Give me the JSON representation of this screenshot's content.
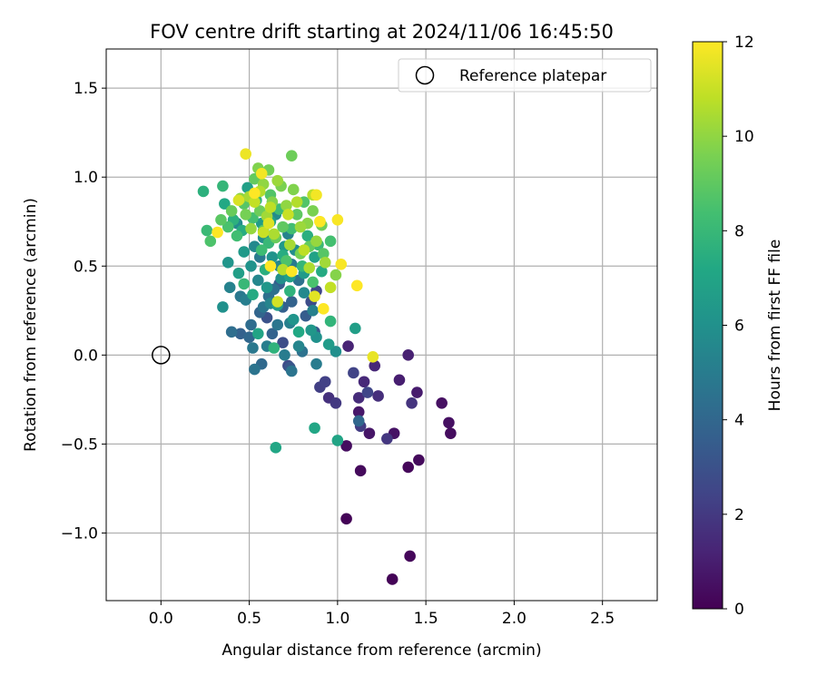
{
  "chart_data": {
    "type": "scatter",
    "title": "FOV centre drift starting at 2024/11/06 16:45:50",
    "xlabel": "Angular distance from reference (arcmin)",
    "ylabel": "Rotation from reference (arcmin)",
    "xlim": [
      -0.31,
      2.81
    ],
    "ylim": [
      -1.38,
      1.72
    ],
    "xticks": [
      0.0,
      0.5,
      1.0,
      1.5,
      2.0,
      2.5
    ],
    "xtick_labels": [
      "0.0",
      "0.5",
      "1.0",
      "1.5",
      "2.0",
      "2.5"
    ],
    "yticks": [
      -1.0,
      -0.5,
      0.0,
      0.5,
      1.0,
      1.5
    ],
    "ytick_labels": [
      "−1.0",
      "−0.5",
      "0.0",
      "0.5",
      "1.0",
      "1.5"
    ],
    "grid": true,
    "legend": {
      "position": "top-right",
      "entries": [
        {
          "label": "Reference platepar",
          "marker": "open-circle",
          "x": 0.0,
          "y": 0.0
        }
      ]
    },
    "colorbar": {
      "label": "Hours from first FF file",
      "colormap": "viridis",
      "range": [
        0,
        12
      ],
      "ticks": [
        0,
        2,
        4,
        6,
        8,
        10,
        12
      ],
      "tick_labels": [
        "0",
        "2",
        "4",
        "6",
        "8",
        "10",
        "12"
      ]
    },
    "series": [
      {
        "values": [
          {
            "x": 1.05,
            "y": -0.92,
            "h": 0.1
          },
          {
            "x": 1.31,
            "y": -1.26,
            "h": 0.1
          },
          {
            "x": 1.41,
            "y": -1.13,
            "h": 0.2
          },
          {
            "x": 1.4,
            "y": -0.63,
            "h": 0.2
          },
          {
            "x": 1.46,
            "y": -0.59,
            "h": 0.3
          },
          {
            "x": 1.13,
            "y": -0.65,
            "h": 0.3
          },
          {
            "x": 1.05,
            "y": -0.51,
            "h": 0.4
          },
          {
            "x": 1.64,
            "y": -0.44,
            "h": 0.4
          },
          {
            "x": 1.63,
            "y": -0.38,
            "h": 0.5
          },
          {
            "x": 1.59,
            "y": -0.27,
            "h": 0.5
          },
          {
            "x": 1.32,
            "y": -0.44,
            "h": 0.6
          },
          {
            "x": 1.18,
            "y": -0.44,
            "h": 0.7
          },
          {
            "x": 1.12,
            "y": -0.32,
            "h": 0.8
          },
          {
            "x": 1.45,
            "y": -0.21,
            "h": 0.9
          },
          {
            "x": 1.35,
            "y": -0.14,
            "h": 1.0
          },
          {
            "x": 1.4,
            "y": 0.0,
            "h": 1.1
          },
          {
            "x": 1.06,
            "y": 0.05,
            "h": 1.2
          },
          {
            "x": 1.21,
            "y": -0.06,
            "h": 1.3
          },
          {
            "x": 1.15,
            "y": -0.15,
            "h": 1.4
          },
          {
            "x": 1.12,
            "y": -0.24,
            "h": 1.5
          },
          {
            "x": 1.23,
            "y": -0.23,
            "h": 1.6
          },
          {
            "x": 0.95,
            "y": -0.24,
            "h": 1.7
          },
          {
            "x": 1.42,
            "y": -0.27,
            "h": 1.8
          },
          {
            "x": 1.28,
            "y": -0.47,
            "h": 1.9
          },
          {
            "x": 0.99,
            "y": -0.27,
            "h": 2.0
          },
          {
            "x": 1.13,
            "y": -0.4,
            "h": 2.1
          },
          {
            "x": 0.9,
            "y": -0.18,
            "h": 2.2
          },
          {
            "x": 0.93,
            "y": -0.15,
            "h": 2.3
          },
          {
            "x": 1.09,
            "y": -0.1,
            "h": 2.4
          },
          {
            "x": 1.17,
            "y": -0.21,
            "h": 2.5
          },
          {
            "x": 0.88,
            "y": 0.36,
            "h": 2.5
          },
          {
            "x": 0.72,
            "y": -0.06,
            "h": 2.7
          },
          {
            "x": 0.69,
            "y": 0.07,
            "h": 2.8
          },
          {
            "x": 0.85,
            "y": 0.3,
            "h": 2.8
          },
          {
            "x": 0.6,
            "y": 0.21,
            "h": 3.0
          },
          {
            "x": 0.73,
            "y": -0.07,
            "h": 3.2
          },
          {
            "x": 0.87,
            "y": 0.13,
            "h": 3.3
          },
          {
            "x": 0.82,
            "y": 0.22,
            "h": 3.5
          },
          {
            "x": 0.67,
            "y": 0.4,
            "h": 3.6
          },
          {
            "x": 0.45,
            "y": 0.12,
            "h": 3.7
          },
          {
            "x": 0.69,
            "y": 0.27,
            "h": 3.7
          },
          {
            "x": 0.63,
            "y": 0.12,
            "h": 3.8
          },
          {
            "x": 0.74,
            "y": 0.3,
            "h": 3.8
          },
          {
            "x": 0.56,
            "y": 0.24,
            "h": 3.9
          },
          {
            "x": 0.5,
            "y": 0.1,
            "h": 4.0
          },
          {
            "x": 1.12,
            "y": -0.37,
            "h": 4.0
          },
          {
            "x": 0.57,
            "y": -0.05,
            "h": 4.1
          },
          {
            "x": 0.51,
            "y": 0.17,
            "h": 4.2
          },
          {
            "x": 0.4,
            "y": 0.13,
            "h": 4.3
          },
          {
            "x": 0.61,
            "y": 0.33,
            "h": 4.4
          },
          {
            "x": 0.64,
            "y": 0.37,
            "h": 4.4
          },
          {
            "x": 0.78,
            "y": 0.42,
            "h": 4.5
          },
          {
            "x": 0.8,
            "y": 0.02,
            "h": 4.5
          },
          {
            "x": 0.53,
            "y": -0.08,
            "h": 4.6
          },
          {
            "x": 0.74,
            "y": -0.09,
            "h": 4.6
          },
          {
            "x": 0.58,
            "y": 0.27,
            "h": 4.7
          },
          {
            "x": 0.66,
            "y": 0.17,
            "h": 4.7
          },
          {
            "x": 0.52,
            "y": 0.04,
            "h": 4.8
          },
          {
            "x": 0.45,
            "y": 0.33,
            "h": 4.8
          },
          {
            "x": 0.56,
            "y": 0.55,
            "h": 4.9
          },
          {
            "x": 0.74,
            "y": 0.51,
            "h": 4.9
          },
          {
            "x": 0.7,
            "y": 0.0,
            "h": 5.0
          },
          {
            "x": 0.88,
            "y": -0.05,
            "h": 5.0
          },
          {
            "x": 0.6,
            "y": 0.05,
            "h": 5.1
          },
          {
            "x": 0.48,
            "y": 0.31,
            "h": 5.1
          },
          {
            "x": 0.73,
            "y": 0.18,
            "h": 5.2
          },
          {
            "x": 0.86,
            "y": 0.25,
            "h": 5.2
          },
          {
            "x": 0.39,
            "y": 0.38,
            "h": 5.3
          },
          {
            "x": 0.72,
            "y": 0.68,
            "h": 5.3
          },
          {
            "x": 0.78,
            "y": 0.05,
            "h": 5.4
          },
          {
            "x": 0.62,
            "y": 0.29,
            "h": 5.4
          },
          {
            "x": 0.55,
            "y": 0.42,
            "h": 5.5
          },
          {
            "x": 0.67,
            "y": 0.5,
            "h": 5.5
          },
          {
            "x": 0.53,
            "y": 0.61,
            "h": 5.6
          },
          {
            "x": 0.81,
            "y": 0.35,
            "h": 5.6
          },
          {
            "x": 0.65,
            "y": 0.79,
            "h": 5.7
          },
          {
            "x": 0.43,
            "y": 0.74,
            "h": 5.7
          },
          {
            "x": 0.76,
            "y": 0.59,
            "h": 5.8
          },
          {
            "x": 0.58,
            "y": 0.66,
            "h": 5.8
          },
          {
            "x": 0.68,
            "y": 0.43,
            "h": 5.9
          },
          {
            "x": 0.99,
            "y": 0.02,
            "h": 5.9
          },
          {
            "x": 0.35,
            "y": 0.27,
            "h": 6.0
          },
          {
            "x": 0.88,
            "y": 0.1,
            "h": 6.0
          },
          {
            "x": 0.51,
            "y": 0.5,
            "h": 6.1
          },
          {
            "x": 0.63,
            "y": 0.55,
            "h": 6.1
          },
          {
            "x": 0.75,
            "y": 0.2,
            "h": 6.2
          },
          {
            "x": 0.38,
            "y": 0.52,
            "h": 6.2
          },
          {
            "x": 0.85,
            "y": 0.14,
            "h": 6.3
          },
          {
            "x": 0.6,
            "y": 0.38,
            "h": 6.3
          },
          {
            "x": 0.7,
            "y": 0.61,
            "h": 6.4
          },
          {
            "x": 0.47,
            "y": 0.58,
            "h": 6.4
          },
          {
            "x": 0.95,
            "y": 0.06,
            "h": 6.5
          },
          {
            "x": 0.81,
            "y": 0.46,
            "h": 6.5
          },
          {
            "x": 0.57,
            "y": 0.74,
            "h": 6.6
          },
          {
            "x": 0.66,
            "y": 0.28,
            "h": 6.6
          },
          {
            "x": 0.44,
            "y": 0.46,
            "h": 6.7
          },
          {
            "x": 1.1,
            "y": 0.15,
            "h": 6.7
          },
          {
            "x": 0.73,
            "y": 0.44,
            "h": 6.8
          },
          {
            "x": 0.49,
            "y": 0.94,
            "h": 6.8
          },
          {
            "x": 0.62,
            "y": 0.75,
            "h": 6.9
          },
          {
            "x": 0.87,
            "y": 0.55,
            "h": 6.9
          },
          {
            "x": 0.55,
            "y": 0.12,
            "h": 7.0
          },
          {
            "x": 1.0,
            "y": -0.48,
            "h": 7.0
          },
          {
            "x": 0.65,
            "y": -0.52,
            "h": 7.1
          },
          {
            "x": 0.87,
            "y": -0.41,
            "h": 7.1
          },
          {
            "x": 0.36,
            "y": 0.85,
            "h": 7.2
          },
          {
            "x": 0.78,
            "y": 0.13,
            "h": 7.2
          },
          {
            "x": 0.52,
            "y": 0.34,
            "h": 7.3
          },
          {
            "x": 0.91,
            "y": 0.47,
            "h": 7.3
          },
          {
            "x": 0.69,
            "y": 0.56,
            "h": 7.4
          },
          {
            "x": 0.46,
            "y": 0.7,
            "h": 7.4
          },
          {
            "x": 0.83,
            "y": 0.67,
            "h": 7.5
          },
          {
            "x": 0.59,
            "y": 0.48,
            "h": 7.5
          },
          {
            "x": 0.24,
            "y": 0.92,
            "h": 7.6
          },
          {
            "x": 0.41,
            "y": 0.76,
            "h": 7.6
          },
          {
            "x": 0.73,
            "y": 0.36,
            "h": 7.7
          },
          {
            "x": 0.64,
            "y": 0.04,
            "h": 7.7
          },
          {
            "x": 0.96,
            "y": 0.19,
            "h": 7.8
          },
          {
            "x": 0.54,
            "y": 0.87,
            "h": 7.8
          },
          {
            "x": 0.35,
            "y": 0.95,
            "h": 7.9
          },
          {
            "x": 0.8,
            "y": 0.5,
            "h": 7.9
          },
          {
            "x": 0.61,
            "y": 0.63,
            "h": 8.0
          },
          {
            "x": 0.47,
            "y": 0.4,
            "h": 8.0
          },
          {
            "x": 0.26,
            "y": 0.7,
            "h": 8.1
          },
          {
            "x": 0.89,
            "y": 0.62,
            "h": 8.1
          },
          {
            "x": 0.67,
            "y": 0.82,
            "h": 8.2
          },
          {
            "x": 0.57,
            "y": 0.59,
            "h": 8.2
          },
          {
            "x": 0.74,
            "y": 0.71,
            "h": 8.3
          },
          {
            "x": 0.43,
            "y": 0.67,
            "h": 8.3
          },
          {
            "x": 0.96,
            "y": 0.64,
            "h": 8.4
          },
          {
            "x": 0.52,
            "y": 0.77,
            "h": 8.4
          },
          {
            "x": 0.38,
            "y": 0.72,
            "h": 8.5
          },
          {
            "x": 0.86,
            "y": 0.41,
            "h": 8.5
          },
          {
            "x": 0.28,
            "y": 0.64,
            "h": 8.6
          },
          {
            "x": 0.71,
            "y": 0.53,
            "h": 8.6
          },
          {
            "x": 0.62,
            "y": 0.9,
            "h": 8.7
          },
          {
            "x": 0.81,
            "y": 0.86,
            "h": 8.7
          },
          {
            "x": 0.47,
            "y": 0.85,
            "h": 8.8
          },
          {
            "x": 0.92,
            "y": 0.57,
            "h": 8.8
          },
          {
            "x": 0.34,
            "y": 0.76,
            "h": 8.9
          },
          {
            "x": 0.58,
            "y": 0.7,
            "h": 8.9
          },
          {
            "x": 0.69,
            "y": 0.72,
            "h": 9.0
          },
          {
            "x": 0.77,
            "y": 0.79,
            "h": 9.0
          },
          {
            "x": 0.53,
            "y": 0.99,
            "h": 9.1
          },
          {
            "x": 0.84,
            "y": 0.61,
            "h": 9.1
          },
          {
            "x": 0.65,
            "y": 0.66,
            "h": 9.2
          },
          {
            "x": 0.4,
            "y": 0.81,
            "h": 9.2
          },
          {
            "x": 0.74,
            "y": 1.12,
            "h": 9.3
          },
          {
            "x": 0.56,
            "y": 0.81,
            "h": 9.3
          },
          {
            "x": 0.91,
            "y": 0.73,
            "h": 9.4
          },
          {
            "x": 0.61,
            "y": 1.04,
            "h": 9.4
          },
          {
            "x": 0.79,
            "y": 0.57,
            "h": 9.5
          },
          {
            "x": 0.48,
            "y": 0.79,
            "h": 9.5
          },
          {
            "x": 0.68,
            "y": 0.95,
            "h": 9.6
          },
          {
            "x": 0.86,
            "y": 0.81,
            "h": 9.6
          },
          {
            "x": 0.55,
            "y": 1.05,
            "h": 9.7
          },
          {
            "x": 0.75,
            "y": 0.93,
            "h": 9.7
          },
          {
            "x": 0.63,
            "y": 0.86,
            "h": 9.8
          },
          {
            "x": 0.99,
            "y": 0.45,
            "h": 9.8
          },
          {
            "x": 0.45,
            "y": 0.88,
            "h": 9.9
          },
          {
            "x": 0.83,
            "y": 0.74,
            "h": 9.9
          },
          {
            "x": 0.58,
            "y": 0.96,
            "h": 10.0
          },
          {
            "x": 0.71,
            "y": 0.84,
            "h": 10.0
          },
          {
            "x": 0.88,
            "y": 0.64,
            "h": 10.1
          },
          {
            "x": 0.51,
            "y": 0.71,
            "h": 10.1
          },
          {
            "x": 0.66,
            "y": 0.98,
            "h": 10.2
          },
          {
            "x": 0.79,
            "y": 0.72,
            "h": 10.2
          },
          {
            "x": 0.93,
            "y": 0.52,
            "h": 10.3
          },
          {
            "x": 0.6,
            "y": 0.78,
            "h": 10.3
          },
          {
            "x": 0.73,
            "y": 0.62,
            "h": 10.4
          },
          {
            "x": 0.5,
            "y": 0.89,
            "h": 10.4
          },
          {
            "x": 0.84,
            "y": 0.49,
            "h": 10.5
          },
          {
            "x": 0.64,
            "y": 0.68,
            "h": 10.5
          },
          {
            "x": 0.77,
            "y": 0.86,
            "h": 10.6
          },
          {
            "x": 0.56,
            "y": 0.92,
            "h": 10.6
          },
          {
            "x": 0.69,
            "y": 0.48,
            "h": 10.7
          },
          {
            "x": 0.86,
            "y": 0.9,
            "h": 10.7
          },
          {
            "x": 0.62,
            "y": 0.83,
            "h": 10.8
          },
          {
            "x": 0.81,
            "y": 0.59,
            "h": 10.8
          },
          {
            "x": 0.53,
            "y": 0.86,
            "h": 10.9
          },
          {
            "x": 0.96,
            "y": 0.38,
            "h": 10.9
          },
          {
            "x": 0.72,
            "y": 0.79,
            "h": 11.0
          },
          {
            "x": 0.58,
            "y": 0.69,
            "h": 11.0
          },
          {
            "x": 0.9,
            "y": 0.75,
            "h": 11.1
          },
          {
            "x": 0.66,
            "y": 0.3,
            "h": 11.2
          },
          {
            "x": 0.44,
            "y": 0.87,
            "h": 11.3
          },
          {
            "x": 0.61,
            "y": 0.74,
            "h": 11.4
          },
          {
            "x": 0.87,
            "y": 0.33,
            "h": 11.5
          },
          {
            "x": 1.2,
            "y": -0.01,
            "h": 11.6
          },
          {
            "x": 0.48,
            "y": 1.13,
            "h": 11.7
          },
          {
            "x": 0.57,
            "y": 1.02,
            "h": 11.8
          },
          {
            "x": 0.88,
            "y": 0.9,
            "h": 11.8
          },
          {
            "x": 1.0,
            "y": 0.76,
            "h": 11.9
          },
          {
            "x": 1.02,
            "y": 0.51,
            "h": 11.9
          },
          {
            "x": 0.92,
            "y": 0.26,
            "h": 12.0
          },
          {
            "x": 1.11,
            "y": 0.39,
            "h": 12.0
          },
          {
            "x": 0.62,
            "y": 0.5,
            "h": 12.0
          },
          {
            "x": 0.32,
            "y": 0.69,
            "h": 12.0
          },
          {
            "x": 0.74,
            "y": 0.47,
            "h": 12.0
          },
          {
            "x": 0.53,
            "y": 0.91,
            "h": 12.0
          },
          {
            "x": 0.9,
            "y": 0.75,
            "h": 12.0
          }
        ]
      }
    ]
  }
}
